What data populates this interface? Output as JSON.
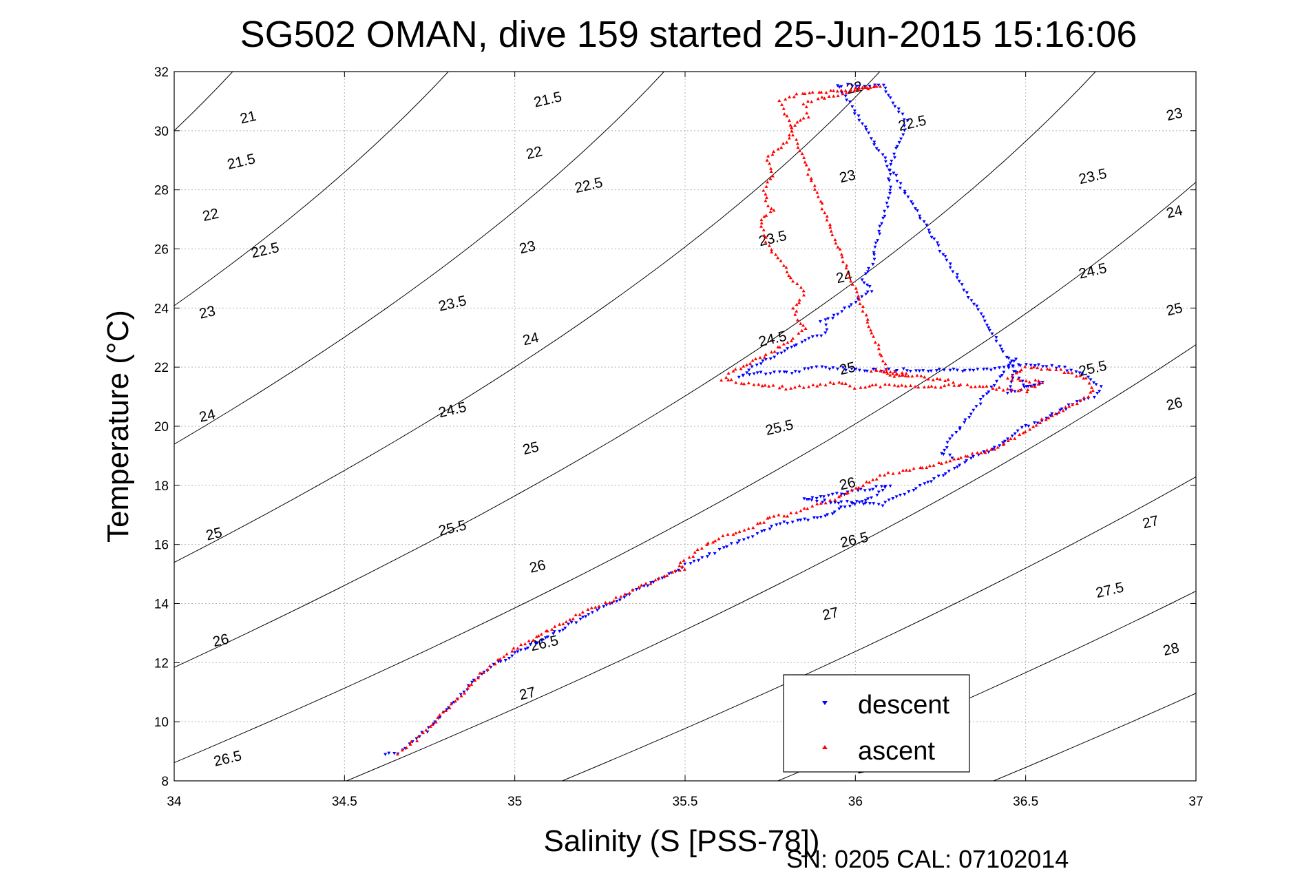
{
  "chart_data": {
    "type": "scatter",
    "title": "SG502 OMAN, dive 159 started 25-Jun-2015 15:16:06",
    "xlabel": "Salinity (S [PSS-78])",
    "ylabel": "Temperature (°C)",
    "footer": "SN: 0205  CAL: 07102014",
    "xlim": [
      34,
      37
    ],
    "ylim": [
      8,
      32
    ],
    "xticks": [
      34,
      34.5,
      35,
      35.5,
      36,
      36.5,
      37
    ],
    "xtick_labels": [
      "34",
      "34.5",
      "35",
      "35.5",
      "36",
      "36.5",
      "37"
    ],
    "yticks": [
      8,
      10,
      12,
      14,
      16,
      18,
      20,
      22,
      24,
      26,
      28,
      30,
      32
    ],
    "ytick_labels": [
      "8",
      "10",
      "12",
      "14",
      "16",
      "18",
      "20",
      "22",
      "24",
      "26",
      "28",
      "30",
      "32"
    ],
    "grid": true,
    "legend_position": "bottom-right",
    "contours": {
      "description": "potential density anomaly isopycnals",
      "levels": [
        21,
        21.5,
        22,
        22.5,
        23,
        23.5,
        24,
        24.5,
        25,
        25.5,
        26,
        26.5,
        27,
        27.5,
        28
      ],
      "labels": [
        {
          "text": "21",
          "s": 34.22,
          "t": 30.3
        },
        {
          "text": "21.5",
          "s": 34.2,
          "t": 28.8
        },
        {
          "text": "22",
          "s": 34.11,
          "t": 27.0
        },
        {
          "text": "22.5",
          "s": 34.27,
          "t": 25.8
        },
        {
          "text": "23",
          "s": 34.1,
          "t": 23.7
        },
        {
          "text": "23.5",
          "s": 34.82,
          "t": 24.0
        },
        {
          "text": "24",
          "s": 34.1,
          "t": 20.2
        },
        {
          "text": "24.5",
          "s": 34.82,
          "t": 20.4
        },
        {
          "text": "25",
          "s": 34.12,
          "t": 16.2
        },
        {
          "text": "25.5",
          "s": 34.82,
          "t": 16.4
        },
        {
          "text": "26",
          "s": 34.14,
          "t": 12.6
        },
        {
          "text": "26.5",
          "s": 34.16,
          "t": 8.6
        },
        {
          "text": "21.5",
          "s": 35.1,
          "t": 30.9
        },
        {
          "text": "22",
          "s": 35.06,
          "t": 29.1
        },
        {
          "text": "22.5",
          "s": 35.22,
          "t": 28.0
        },
        {
          "text": "23",
          "s": 35.04,
          "t": 25.9
        },
        {
          "text": "24",
          "s": 35.05,
          "t": 22.8
        },
        {
          "text": "25",
          "s": 35.05,
          "t": 19.1
        },
        {
          "text": "26",
          "s": 35.07,
          "t": 15.1
        },
        {
          "text": "26.5",
          "s": 35.09,
          "t": 12.5
        },
        {
          "text": "27",
          "s": 35.04,
          "t": 10.8
        },
        {
          "text": "22",
          "s": 36.0,
          "t": 31.3
        },
        {
          "text": "22.5",
          "s": 36.17,
          "t": 30.1
        },
        {
          "text": "23",
          "s": 35.98,
          "t": 28.3
        },
        {
          "text": "23.5",
          "s": 35.76,
          "t": 26.2
        },
        {
          "text": "24",
          "s": 35.97,
          "t": 24.9
        },
        {
          "text": "24.5",
          "s": 35.76,
          "t": 22.8
        },
        {
          "text": "25",
          "s": 35.98,
          "t": 21.8
        },
        {
          "text": "25.5",
          "s": 35.78,
          "t": 19.8
        },
        {
          "text": "26",
          "s": 35.98,
          "t": 17.9
        },
        {
          "text": "26.5",
          "s": 36.0,
          "t": 16.0
        },
        {
          "text": "27",
          "s": 35.93,
          "t": 13.5
        },
        {
          "text": "23",
          "s": 36.94,
          "t": 30.4
        },
        {
          "text": "23.5",
          "s": 36.7,
          "t": 28.3
        },
        {
          "text": "24",
          "s": 36.94,
          "t": 27.1
        },
        {
          "text": "24.5",
          "s": 36.7,
          "t": 25.1
        },
        {
          "text": "25",
          "s": 36.94,
          "t": 23.8
        },
        {
          "text": "25.5",
          "s": 36.7,
          "t": 21.8
        },
        {
          "text": "26",
          "s": 36.94,
          "t": 20.6
        },
        {
          "text": "27",
          "s": 36.87,
          "t": 16.6
        },
        {
          "text": "27.5",
          "s": 36.75,
          "t": 14.3
        },
        {
          "text": "28",
          "s": 36.93,
          "t": 12.3
        },
        {
          "text": "28",
          "s": 36.03,
          "t": 8.3
        }
      ]
    },
    "series": [
      {
        "name": "descent",
        "color": "#0000ff",
        "marker": "triangle-down",
        "trace": [
          [
            34.62,
            8.9
          ],
          [
            34.66,
            8.95
          ],
          [
            34.7,
            9.3
          ],
          [
            34.75,
            9.8
          ],
          [
            34.8,
            10.4
          ],
          [
            34.85,
            11.0
          ],
          [
            34.9,
            11.6
          ],
          [
            34.95,
            12.0
          ],
          [
            35.0,
            12.3
          ],
          [
            35.05,
            12.6
          ],
          [
            35.1,
            12.9
          ],
          [
            35.15,
            13.2
          ],
          [
            35.2,
            13.5
          ],
          [
            35.25,
            13.8
          ],
          [
            35.3,
            14.1
          ],
          [
            35.35,
            14.4
          ],
          [
            35.4,
            14.7
          ],
          [
            35.45,
            15.0
          ],
          [
            35.5,
            15.3
          ],
          [
            35.55,
            15.55
          ],
          [
            35.6,
            15.8
          ],
          [
            35.65,
            16.05
          ],
          [
            35.7,
            16.3
          ],
          [
            35.78,
            16.7
          ],
          [
            35.9,
            16.9
          ],
          [
            35.95,
            17.2
          ],
          [
            36.05,
            17.6
          ],
          [
            36.1,
            18.0
          ],
          [
            35.85,
            17.5
          ],
          [
            36.0,
            17.4
          ],
          [
            36.08,
            17.35
          ],
          [
            36.3,
            18.6
          ],
          [
            36.35,
            19.0
          ],
          [
            36.4,
            19.2
          ],
          [
            36.45,
            19.6
          ],
          [
            36.5,
            20.0
          ],
          [
            36.55,
            20.2
          ],
          [
            36.6,
            20.5
          ],
          [
            36.65,
            20.8
          ],
          [
            36.7,
            21.0
          ],
          [
            36.72,
            21.3
          ],
          [
            36.68,
            21.7
          ],
          [
            36.6,
            22.0
          ],
          [
            36.5,
            22.1
          ],
          [
            36.4,
            21.9
          ],
          [
            36.2,
            21.9
          ],
          [
            36.0,
            21.9
          ],
          [
            35.9,
            22.0
          ],
          [
            35.8,
            21.8
          ],
          [
            35.7,
            21.8
          ],
          [
            35.66,
            21.7
          ],
          [
            35.7,
            22.0
          ],
          [
            35.75,
            22.3
          ],
          [
            35.8,
            22.6
          ],
          [
            35.85,
            22.9
          ],
          [
            35.9,
            23.1
          ],
          [
            35.92,
            23.3
          ],
          [
            35.9,
            23.5
          ],
          [
            35.95,
            23.8
          ],
          [
            36.0,
            24.2
          ],
          [
            36.05,
            24.6
          ],
          [
            36.02,
            25.0
          ],
          [
            36.05,
            25.5
          ],
          [
            36.07,
            26.6
          ],
          [
            36.1,
            27.7
          ],
          [
            36.1,
            28.7
          ],
          [
            36.15,
            30.3
          ],
          [
            36.1,
            31.2
          ],
          [
            36.08,
            31.5
          ],
          [
            36.04,
            31.55
          ],
          [
            36.0,
            31.5
          ],
          [
            35.95,
            31.55
          ],
          [
            36.5,
            21.3
          ],
          [
            36.55,
            21.5
          ],
          [
            36.45,
            21.1
          ],
          [
            36.47,
            22.3
          ],
          [
            36.25,
            19.1
          ],
          [
            36.3,
            18.9
          ]
        ]
      },
      {
        "name": "ascent",
        "color": "#ff0000",
        "marker": "triangle-up",
        "trace": [
          [
            34.66,
            8.9
          ],
          [
            34.7,
            9.3
          ],
          [
            34.75,
            9.8
          ],
          [
            34.8,
            10.4
          ],
          [
            34.85,
            11.0
          ],
          [
            34.9,
            11.6
          ],
          [
            34.95,
            12.1
          ],
          [
            35.0,
            12.45
          ],
          [
            35.05,
            12.8
          ],
          [
            35.1,
            13.1
          ],
          [
            35.15,
            13.4
          ],
          [
            35.2,
            13.7
          ],
          [
            35.25,
            13.95
          ],
          [
            35.3,
            14.2
          ],
          [
            35.35,
            14.45
          ],
          [
            35.4,
            14.7
          ],
          [
            35.45,
            14.95
          ],
          [
            35.5,
            15.2
          ],
          [
            35.48,
            15.3
          ],
          [
            35.52,
            15.6
          ],
          [
            35.55,
            15.9
          ],
          [
            35.6,
            16.2
          ],
          [
            35.65,
            16.4
          ],
          [
            35.7,
            16.6
          ],
          [
            35.75,
            16.9
          ],
          [
            35.8,
            17.0
          ],
          [
            35.85,
            17.2
          ],
          [
            35.9,
            17.4
          ],
          [
            35.95,
            17.6
          ],
          [
            36.0,
            17.9
          ],
          [
            36.05,
            18.2
          ],
          [
            36.1,
            18.4
          ],
          [
            36.2,
            18.6
          ],
          [
            36.3,
            18.9
          ],
          [
            36.4,
            19.2
          ],
          [
            36.45,
            19.5
          ],
          [
            36.5,
            19.8
          ],
          [
            36.55,
            20.2
          ],
          [
            36.6,
            20.5
          ],
          [
            36.65,
            20.8
          ],
          [
            36.7,
            21.2
          ],
          [
            36.68,
            21.6
          ],
          [
            36.6,
            21.9
          ],
          [
            36.5,
            22.0
          ],
          [
            36.45,
            21.6
          ],
          [
            36.55,
            21.5
          ],
          [
            36.5,
            21.2
          ],
          [
            36.4,
            21.3
          ],
          [
            36.3,
            21.4
          ],
          [
            36.2,
            21.3
          ],
          [
            36.1,
            21.4
          ],
          [
            36.0,
            21.3
          ],
          [
            35.95,
            21.5
          ],
          [
            35.9,
            21.4
          ],
          [
            35.8,
            21.3
          ],
          [
            35.7,
            21.4
          ],
          [
            35.65,
            21.5
          ],
          [
            35.61,
            21.6
          ],
          [
            35.65,
            21.9
          ],
          [
            35.7,
            22.2
          ],
          [
            35.75,
            22.5
          ],
          [
            35.78,
            22.7
          ],
          [
            35.82,
            23.0
          ],
          [
            35.85,
            23.3
          ],
          [
            35.83,
            23.6
          ],
          [
            35.82,
            24.0
          ],
          [
            35.84,
            24.3
          ],
          [
            35.85,
            24.6
          ],
          [
            35.82,
            24.9
          ],
          [
            35.8,
            25.2
          ],
          [
            35.78,
            25.6
          ],
          [
            35.75,
            26.0
          ],
          [
            35.73,
            26.5
          ],
          [
            35.72,
            27.0
          ],
          [
            35.76,
            27.3
          ],
          [
            35.74,
            27.6
          ],
          [
            35.73,
            28.0
          ],
          [
            35.76,
            28.5
          ],
          [
            35.74,
            29.0
          ],
          [
            35.76,
            29.3
          ],
          [
            35.8,
            29.6
          ],
          [
            35.82,
            30.2
          ],
          [
            35.86,
            30.5
          ],
          [
            35.85,
            30.9
          ],
          [
            35.9,
            31.1
          ],
          [
            35.95,
            31.2
          ],
          [
            36.0,
            31.4
          ],
          [
            36.05,
            31.45
          ],
          [
            36.07,
            31.5
          ],
          [
            35.83,
            31.2
          ],
          [
            35.78,
            31.0
          ],
          [
            36.1,
            21.7
          ],
          [
            36.15,
            21.8
          ],
          [
            36.05,
            21.9
          ],
          [
            36.3,
            21.5
          ]
        ]
      }
    ]
  }
}
